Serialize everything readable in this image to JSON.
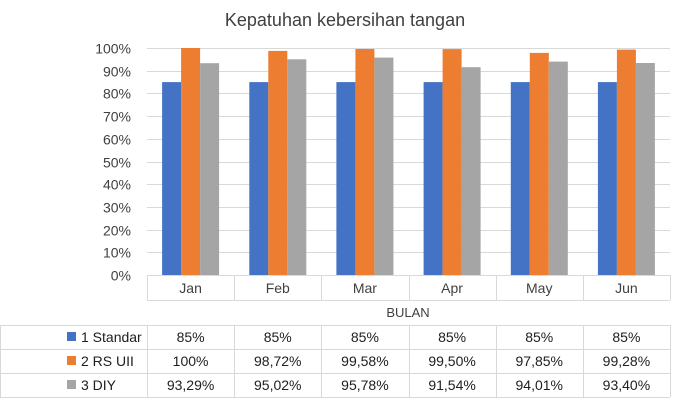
{
  "chart_data": {
    "type": "bar",
    "title": "Kepatuhan kebersihan tangan",
    "xlabel": "BULAN",
    "ylabel": "",
    "categories": [
      "Jan",
      "Feb",
      "Mar",
      "Apr",
      "May",
      "Jun"
    ],
    "ylim": [
      0,
      100
    ],
    "ytick_step": 10,
    "ytick_suffix": "%",
    "grid": true,
    "legend_placement": "data-table",
    "series": [
      {
        "name": "1 Standar",
        "color": "#4472C4",
        "values": [
          85,
          85,
          85,
          85,
          85,
          85
        ],
        "labels": [
          "85%",
          "85%",
          "85%",
          "85%",
          "85%",
          "85%"
        ]
      },
      {
        "name": "2 RS UII",
        "color": "#ED7D31",
        "values": [
          100,
          98.72,
          99.58,
          99.5,
          97.85,
          99.28
        ],
        "labels": [
          "100%",
          "98,72%",
          "99,58%",
          "99,50%",
          "97,85%",
          "99,28%"
        ]
      },
      {
        "name": "3 DIY",
        "color": "#A5A5A5",
        "values": [
          93.29,
          95.02,
          95.78,
          91.54,
          94.01,
          93.4
        ],
        "labels": [
          "93,29%",
          "95,02%",
          "95,78%",
          "91,54%",
          "94,01%",
          "93,40%"
        ]
      }
    ]
  }
}
